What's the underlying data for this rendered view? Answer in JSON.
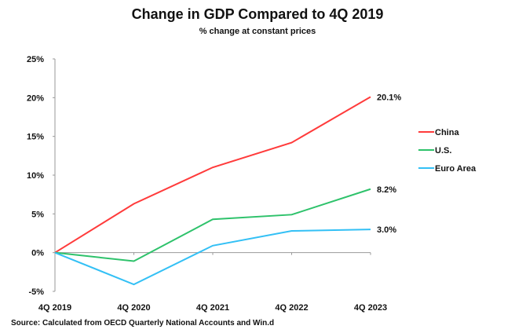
{
  "chart_data": {
    "type": "line",
    "title": "Change in GDP Compared to 4Q 2019",
    "subtitle": "% change at constant prices",
    "source": "Source:  Calculated from OECD Quarterly National Accounts and Win.d",
    "categories": [
      "4Q 2019",
      "4Q 2020",
      "4Q 2021",
      "4Q 2022",
      "4Q 2023"
    ],
    "ylim": [
      -5,
      25
    ],
    "yticks": [
      -5,
      0,
      5,
      10,
      15,
      20,
      25
    ],
    "ytick_labels": [
      "-5%",
      "0%",
      "5%",
      "10%",
      "15%",
      "20%",
      "25%"
    ],
    "grid": false,
    "legend_placement": "right",
    "series": [
      {
        "name": "China",
        "color": "#ff3b3b",
        "values": [
          0,
          6.3,
          11.0,
          14.2,
          20.1
        ],
        "end_label": "20.1%"
      },
      {
        "name": "U.S.",
        "color": "#2ec26b",
        "values": [
          0,
          -1.1,
          4.3,
          4.9,
          8.2
        ],
        "end_label": "8.2%"
      },
      {
        "name": "Euro Area",
        "color": "#33c0f5",
        "values": [
          0,
          -4.1,
          0.9,
          2.8,
          3.0
        ],
        "end_label": "3.0%"
      }
    ]
  }
}
